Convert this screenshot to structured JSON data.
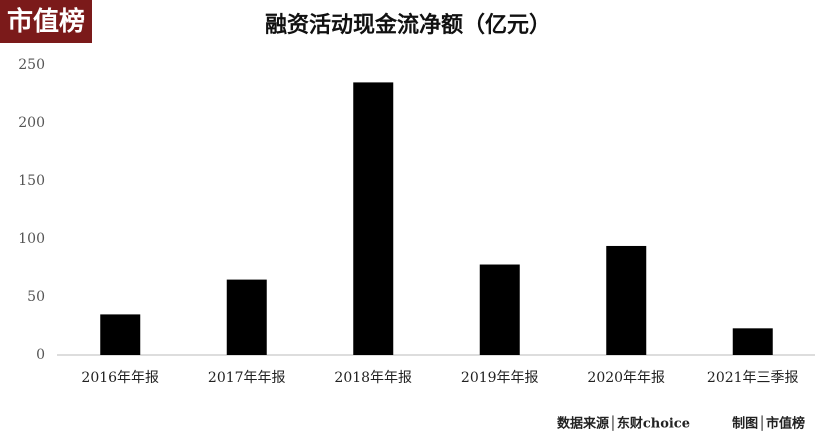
{
  "logo": "市值榜",
  "chart_data": {
    "type": "bar",
    "title": "融资活动现金流净额（亿元）",
    "categories": [
      "2016年年报",
      "2017年年报",
      "2018年年报",
      "2019年年报",
      "2020年年报",
      "2021年三季报"
    ],
    "values": [
      35,
      65,
      235,
      78,
      94,
      23
    ],
    "color": "#000000",
    "ylim": [
      0,
      250
    ],
    "yticks": [
      0,
      50,
      100,
      150,
      200,
      250
    ],
    "grid": false
  },
  "footer": {
    "source": "数据来源│东财choice",
    "credit": "制图│市值榜"
  }
}
